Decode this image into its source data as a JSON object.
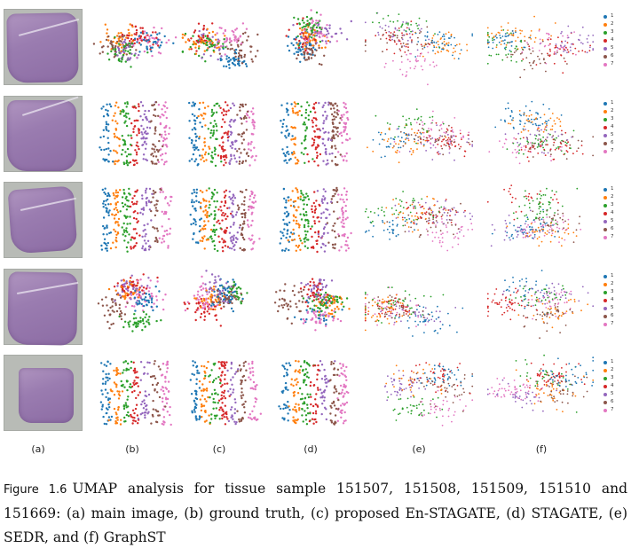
{
  "figure": {
    "label": "Figure 1.6",
    "caption": "UMAP analysis for tissue sample 151507, 151508, 151509, 151510 and 151669: (a) main image, (b) ground truth, (c) proposed En-STAGATE, (d) STAGATE, (e) SEDR, and (f) GraphST",
    "column_labels": [
      "(a)",
      "(b)",
      "(c)",
      "(d)",
      "(e)",
      "(f)"
    ],
    "samples": [
      "151507",
      "151508",
      "151509",
      "151510",
      "151669"
    ],
    "methods": [
      "main image",
      "ground truth",
      "proposed En-STAGATE",
      "STAGATE",
      "SEDR",
      "GraphST"
    ]
  },
  "legend": {
    "labels": [
      "1",
      "2",
      "3",
      "4",
      "5",
      "6",
      "7"
    ]
  },
  "palette": {
    "1": "#1f77b4",
    "2": "#ff7f0e",
    "3": "#2ca02c",
    "4": "#d62728",
    "5": "#9467bd",
    "6": "#8c564b",
    "7": "#e377c2"
  },
  "chart_data": [
    {
      "type": "scatter",
      "title": "UMAP",
      "sample": "151507",
      "method": "ground truth",
      "legend": [
        "1",
        "2",
        "3",
        "4",
        "5",
        "6",
        "7"
      ]
    },
    {
      "type": "scatter",
      "title": "UMAP",
      "sample": "151507",
      "method": "proposed En-STAGATE",
      "legend": [
        "1",
        "2",
        "3",
        "4",
        "5",
        "6",
        "7"
      ]
    },
    {
      "type": "scatter",
      "title": "UMAP",
      "sample": "151507",
      "method": "STAGATE",
      "legend": [
        "1",
        "2",
        "3",
        "4",
        "5",
        "6",
        "7"
      ]
    },
    {
      "type": "scatter",
      "title": "UMAP",
      "sample": "151507",
      "method": "SEDR",
      "legend": [
        "1",
        "2",
        "3",
        "4",
        "5",
        "6",
        "7"
      ]
    },
    {
      "type": "scatter",
      "title": "UMAP",
      "sample": "151507",
      "method": "GraphST",
      "legend": [
        "1",
        "2",
        "3",
        "4",
        "5",
        "6",
        "7"
      ]
    },
    {
      "type": "scatter",
      "title": "UMAP",
      "sample": "151508",
      "method": "ground truth",
      "legend": [
        "1",
        "2",
        "3",
        "4",
        "5",
        "6",
        "7"
      ]
    },
    {
      "type": "scatter",
      "title": "UMAP",
      "sample": "151508",
      "method": "proposed En-STAGATE",
      "legend": [
        "1",
        "2",
        "3",
        "4",
        "5",
        "6",
        "7"
      ]
    },
    {
      "type": "scatter",
      "title": "UMAP",
      "sample": "151508",
      "method": "STAGATE",
      "legend": [
        "1",
        "2",
        "3",
        "4",
        "5",
        "6",
        "7"
      ]
    },
    {
      "type": "scatter",
      "title": "UMAP",
      "sample": "151508",
      "method": "SEDR",
      "legend": [
        "1",
        "2",
        "3",
        "4",
        "5",
        "6",
        "7"
      ]
    },
    {
      "type": "scatter",
      "title": "UMAP",
      "sample": "151508",
      "method": "GraphST",
      "legend": [
        "1",
        "2",
        "3",
        "4",
        "5",
        "6",
        "7"
      ]
    },
    {
      "type": "scatter",
      "title": "UMAP",
      "sample": "151509",
      "method": "ground truth",
      "legend": [
        "1",
        "2",
        "3",
        "4",
        "5",
        "6",
        "7"
      ]
    },
    {
      "type": "scatter",
      "title": "UMAP",
      "sample": "151509",
      "method": "proposed En-STAGATE",
      "legend": [
        "1",
        "2",
        "3",
        "4",
        "5",
        "6",
        "7"
      ]
    },
    {
      "type": "scatter",
      "title": "UMAP",
      "sample": "151509",
      "method": "STAGATE",
      "legend": [
        "1",
        "2",
        "3",
        "4",
        "5",
        "6",
        "7"
      ]
    },
    {
      "type": "scatter",
      "title": "UMAP",
      "sample": "151509",
      "method": "SEDR",
      "legend": [
        "1",
        "2",
        "3",
        "4",
        "5",
        "6",
        "7"
      ]
    },
    {
      "type": "scatter",
      "title": "UMAP",
      "sample": "151509",
      "method": "GraphST",
      "legend": [
        "1",
        "2",
        "3",
        "4",
        "5",
        "6",
        "7"
      ]
    },
    {
      "type": "scatter",
      "title": "UMAP",
      "sample": "151510",
      "method": "ground truth",
      "legend": [
        "1",
        "2",
        "3",
        "4",
        "5",
        "6",
        "7"
      ]
    },
    {
      "type": "scatter",
      "title": "UMAP",
      "sample": "151510",
      "method": "proposed En-STAGATE",
      "legend": [
        "1",
        "2",
        "3",
        "4",
        "5",
        "6",
        "7"
      ]
    },
    {
      "type": "scatter",
      "title": "UMAP",
      "sample": "151510",
      "method": "STAGATE",
      "legend": [
        "1",
        "2",
        "3",
        "4",
        "5",
        "6",
        "7"
      ]
    },
    {
      "type": "scatter",
      "title": "UMAP",
      "sample": "151510",
      "method": "SEDR",
      "legend": [
        "1",
        "2",
        "3",
        "4",
        "5",
        "6",
        "7"
      ]
    },
    {
      "type": "scatter",
      "title": "UMAP",
      "sample": "151510",
      "method": "GraphST",
      "legend": [
        "1",
        "2",
        "3",
        "4",
        "5",
        "6",
        "7"
      ]
    },
    {
      "type": "scatter",
      "title": "UMAP",
      "sample": "151669",
      "method": "ground truth",
      "legend": [
        "1",
        "2",
        "3",
        "4",
        "5",
        "6",
        "7"
      ]
    },
    {
      "type": "scatter",
      "title": "UMAP",
      "sample": "151669",
      "method": "proposed En-STAGATE",
      "legend": [
        "1",
        "2",
        "3",
        "4",
        "5",
        "6",
        "7"
      ]
    },
    {
      "type": "scatter",
      "title": "UMAP",
      "sample": "151669",
      "method": "STAGATE",
      "legend": [
        "1",
        "2",
        "3",
        "4",
        "5",
        "6",
        "7"
      ]
    },
    {
      "type": "scatter",
      "title": "UMAP",
      "sample": "151669",
      "method": "SEDR",
      "legend": [
        "1",
        "2",
        "3",
        "4",
        "5",
        "6",
        "7"
      ]
    },
    {
      "type": "scatter",
      "title": "UMAP",
      "sample": "151669",
      "method": "GraphST",
      "legend": [
        "1",
        "2",
        "3",
        "4",
        "5",
        "6",
        "7"
      ]
    }
  ]
}
